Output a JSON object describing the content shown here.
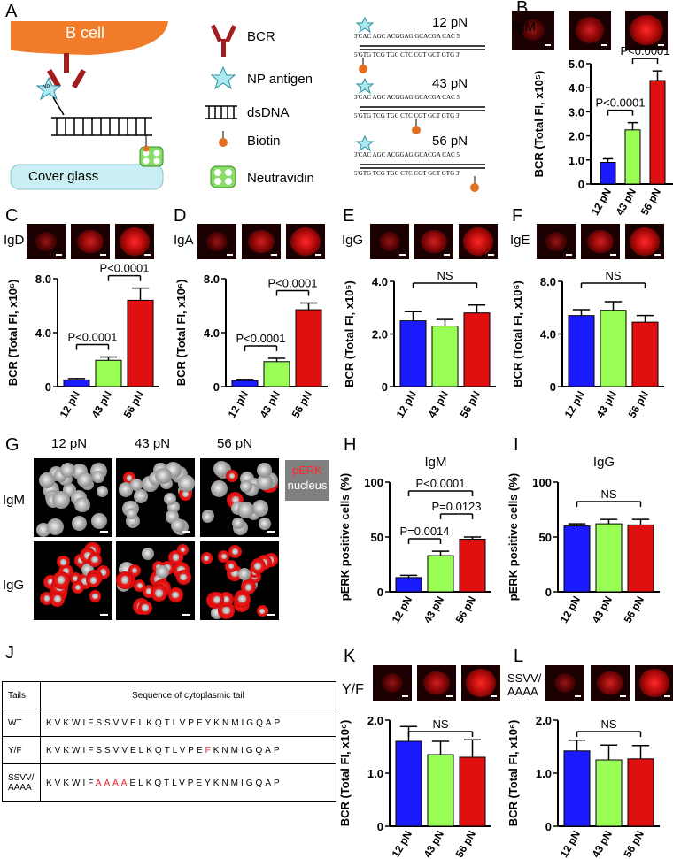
{
  "panels": {
    "A": {
      "letter": "A",
      "b_cell": "B cell",
      "cover_glass": "Cover glass",
      "np": "NP",
      "legend": [
        "BCR",
        "NP antigen",
        "dsDNA",
        "Biotin",
        "Neutravidin"
      ],
      "constructs": [
        {
          "force": "12 pN",
          "top": "3'CAC AGC ACGGAG GCACGA CAC 5'",
          "bottom": "5'GTG TCG TGC CTC CGT GCT GTG 3'"
        },
        {
          "force": "43 pN",
          "top": "3'CAC AGC ACGGAG GCACGA CAC 5'",
          "bottom": "5'GTG TCG TGC CTC CGT GCT GTG 3'"
        },
        {
          "force": "56 pN",
          "top": "3'CAC AGC ACGGAG GCACGA CAC 5'",
          "bottom": "5'GTG TCG TGC CTC CGT GCT GTG 3'"
        }
      ]
    },
    "G": {
      "letter": "G",
      "cols": [
        "12 pN",
        "43 pN",
        "56 pN"
      ],
      "rows": [
        "IgM",
        "IgG"
      ],
      "legend_perk": "pERK",
      "legend_nucleus": "nucleus"
    },
    "J": {
      "letter": "J",
      "header": [
        "Tails",
        "Sequence of cytoplasmic tail"
      ],
      "rows": [
        {
          "name": "WT",
          "pre": "KVKWIFSSVVELKQTLVPEYKNMIGQAP",
          "red": "",
          "post": ""
        },
        {
          "name": "Y/F",
          "pre": "KVKWIFSSVVELKQTLVPE",
          "red": "F",
          "post": "KNMIGQAP"
        },
        {
          "name": "SSVV/\nAAAA",
          "pre": "KVKWIF",
          "red": "AAAA",
          "post": "ELKQTLVPEYKNMIGQAP"
        }
      ]
    }
  },
  "chart_data": [
    {
      "id": "B",
      "type": "bar",
      "isotype": "IgM",
      "categories": [
        "12 pN",
        "43 pN",
        "56 pN"
      ],
      "values": [
        0.9,
        2.25,
        4.3
      ],
      "errors": [
        0.15,
        0.3,
        0.4
      ],
      "ylabel": "BCR (Total FI, x10⁵)",
      "ylim": [
        0,
        5
      ],
      "yticks": [
        "0",
        "1.0",
        "2.0",
        "3.0",
        "4.0",
        "5.0"
      ],
      "annotations": [
        "P<0.0001",
        "P<0.0001"
      ]
    },
    {
      "id": "C",
      "type": "bar",
      "isotype": "IgD",
      "categories": [
        "12 pN",
        "43 pN",
        "56 pN"
      ],
      "values": [
        0.5,
        1.95,
        6.4
      ],
      "errors": [
        0.1,
        0.25,
        0.9
      ],
      "ylabel": "BCR (Total FI, x10⁶)",
      "ylim": [
        0,
        8
      ],
      "yticks": [
        "0",
        "4.0",
        "8.0"
      ],
      "annotations": [
        "P<0.0001",
        "P<0.0001"
      ]
    },
    {
      "id": "D",
      "type": "bar",
      "isotype": "IgA",
      "categories": [
        "12 pN",
        "43 pN",
        "56 pN"
      ],
      "values": [
        0.45,
        1.85,
        5.7
      ],
      "errors": [
        0.08,
        0.25,
        0.5
      ],
      "ylabel": "BCR (Total FI, x10⁶)",
      "ylim": [
        0,
        8
      ],
      "yticks": [
        "0",
        "4.0",
        "8.0"
      ],
      "annotations": [
        "P<0.0001",
        "P<0.0001"
      ]
    },
    {
      "id": "E",
      "type": "bar",
      "isotype": "IgG",
      "categories": [
        "12 pN",
        "43 pN",
        "56 pN"
      ],
      "values": [
        2.5,
        2.3,
        2.8
      ],
      "errors": [
        0.35,
        0.25,
        0.3
      ],
      "ylabel": "BCR (Total FI, x10⁵)",
      "ylim": [
        0,
        4
      ],
      "yticks": [
        "0",
        "2.0",
        "4.0"
      ],
      "annotations": [
        "NS"
      ]
    },
    {
      "id": "F",
      "type": "bar",
      "isotype": "IgE",
      "categories": [
        "12 pN",
        "43 pN",
        "56 pN"
      ],
      "values": [
        5.4,
        5.8,
        4.9
      ],
      "errors": [
        0.45,
        0.65,
        0.5
      ],
      "ylabel": "BCR (Total FI, x10⁶)",
      "ylim": [
        0,
        8
      ],
      "yticks": [
        "0",
        "4.0",
        "8.0"
      ],
      "annotations": [
        "NS"
      ]
    },
    {
      "id": "H",
      "type": "bar",
      "title": "IgM",
      "categories": [
        "12 pN",
        "43 pN",
        "56 pN"
      ],
      "values": [
        13,
        33,
        48
      ],
      "errors": [
        2,
        4,
        2
      ],
      "ylabel": "pERK positive cells (%)",
      "ylim": [
        0,
        100
      ],
      "yticks": [
        "0",
        "50",
        "100"
      ],
      "annotations": [
        "P<0.0001",
        "P=0.0123",
        "P=0.0014"
      ]
    },
    {
      "id": "I",
      "type": "bar",
      "title": "IgG",
      "categories": [
        "12 pN",
        "43 pN",
        "56 pN"
      ],
      "values": [
        60,
        62,
        61
      ],
      "errors": [
        2,
        4,
        5
      ],
      "ylabel": "pERK positive cells (%)",
      "ylim": [
        0,
        100
      ],
      "yticks": [
        "0",
        "50",
        "100"
      ],
      "annotations": [
        "NS"
      ]
    },
    {
      "id": "K",
      "type": "bar",
      "isotype": "Y/F",
      "categories": [
        "12 pN",
        "43 pN",
        "56 pN"
      ],
      "values": [
        1.6,
        1.35,
        1.3
      ],
      "errors": [
        0.28,
        0.25,
        0.33
      ],
      "ylabel": "BCR (Total FI, x10⁶)",
      "ylim": [
        0,
        2
      ],
      "yticks": [
        "0",
        "1.0",
        "2.0"
      ],
      "annotations": [
        "NS"
      ]
    },
    {
      "id": "L",
      "type": "bar",
      "isotype": "SSVV/\nAAAA",
      "categories": [
        "12 pN",
        "43 pN",
        "56 pN"
      ],
      "values": [
        1.42,
        1.25,
        1.27
      ],
      "errors": [
        0.2,
        0.28,
        0.25
      ],
      "ylabel": "BCR (Total FI, x10⁶)",
      "ylim": [
        0,
        2
      ],
      "yticks": [
        "0",
        "1.0",
        "2.0"
      ],
      "annotations": [
        "NS"
      ]
    }
  ],
  "colors": {
    "c12": "#1a1aff",
    "c43": "#99ff55",
    "c56": "#e01010",
    "bcell": "#f07c2a",
    "glass": "#c9eef3"
  }
}
